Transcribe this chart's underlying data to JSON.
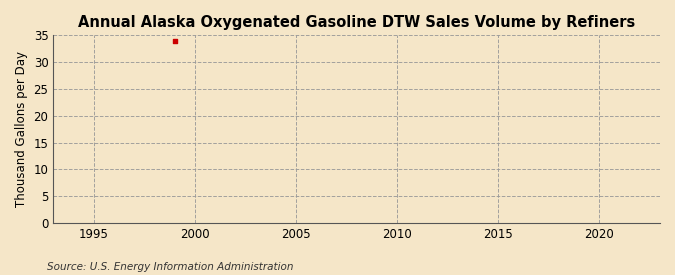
{
  "title": "Annual Alaska Oxygenated Gasoline DTW Sales Volume by Refiners",
  "ylabel": "Thousand Gallons per Day",
  "source_text": "Source: U.S. Energy Information Administration",
  "background_color": "#f5e6c8",
  "plot_background_color": "#f5e6c8",
  "data_x": [
    1999
  ],
  "data_y": [
    33.9
  ],
  "data_color": "#cc0000",
  "xlim": [
    1993,
    2023
  ],
  "ylim": [
    0,
    35
  ],
  "xticks": [
    1995,
    2000,
    2005,
    2010,
    2015,
    2020
  ],
  "yticks": [
    0,
    5,
    10,
    15,
    20,
    25,
    30,
    35
  ],
  "grid_color": "#999999",
  "title_fontsize": 10.5,
  "label_fontsize": 8.5,
  "tick_fontsize": 8.5,
  "source_fontsize": 7.5
}
